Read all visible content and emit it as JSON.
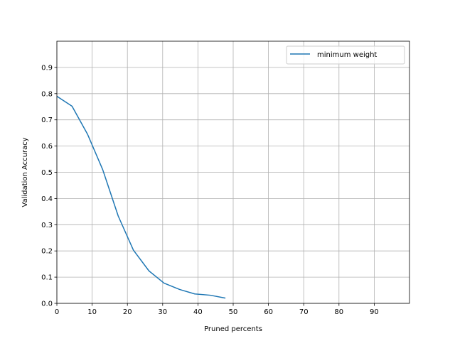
{
  "chart_data": {
    "type": "line",
    "title": "",
    "xlabel": "Pruned percents",
    "ylabel": "Validation Accuracy",
    "xlim": [
      0,
      100
    ],
    "ylim": [
      0,
      1.0
    ],
    "xticks": [
      0,
      10,
      20,
      30,
      40,
      50,
      60,
      70,
      80,
      90
    ],
    "yticks": [
      0.0,
      0.1,
      0.2,
      0.3,
      0.4,
      0.5,
      0.6,
      0.7,
      0.8,
      0.9
    ],
    "xtick_labels": [
      "0",
      "10",
      "20",
      "30",
      "40",
      "50",
      "60",
      "70",
      "80",
      "90"
    ],
    "ytick_labels": [
      "0.0",
      "0.1",
      "0.2",
      "0.3",
      "0.4",
      "0.5",
      "0.6",
      "0.7",
      "0.8",
      "0.9"
    ],
    "grid": true,
    "legend_position": "top-right",
    "series": [
      {
        "name": "minimum weight",
        "color": "#1f77b4",
        "x": [
          0,
          4.3,
          8.7,
          13.0,
          17.4,
          21.7,
          26.1,
          30.4,
          34.8,
          39.1,
          43.5,
          47.8
        ],
        "y": [
          0.79,
          0.752,
          0.645,
          0.51,
          0.333,
          0.203,
          0.124,
          0.077,
          0.053,
          0.036,
          0.031,
          0.02
        ]
      }
    ]
  }
}
